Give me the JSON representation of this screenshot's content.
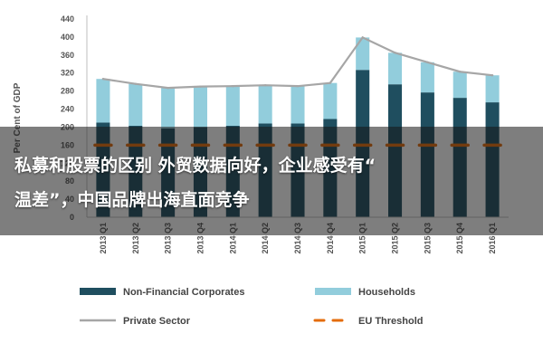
{
  "chart_data": {
    "type": "bar",
    "stacked": true,
    "ylabel": "Per Cent of GDP",
    "ylim": [
      0,
      440
    ],
    "yticks": [
      0,
      40,
      80,
      120,
      160,
      200,
      240,
      280,
      320,
      360,
      400,
      440
    ],
    "grid": false,
    "legend_position": "bottom",
    "categories": [
      "2013 Q1",
      "2013 Q2",
      "2013 Q3",
      "2013 Q4",
      "2014 Q1",
      "2014 Q2",
      "2014 Q3",
      "2014 Q4",
      "2015 Q1",
      "2015 Q2",
      "2015 Q3",
      "2015 Q4",
      "2016 Q1"
    ],
    "series": [
      {
        "name": "Non-Financial Corporates",
        "kind": "bar",
        "color": "#1f4e5f",
        "values": [
          210,
          203,
          197,
          200,
          203,
          208,
          208,
          218,
          327,
          295,
          277,
          265,
          255
        ]
      },
      {
        "name": "Households",
        "kind": "bar",
        "color": "#92cddc",
        "values": [
          97,
          93,
          90,
          90,
          88,
          85,
          83,
          80,
          72,
          70,
          67,
          58,
          60
        ]
      },
      {
        "name": "Private Sector",
        "kind": "line",
        "color": "#a6a6a6",
        "values": [
          307,
          296,
          287,
          290,
          291,
          293,
          291,
          298,
          399,
          365,
          344,
          323,
          315
        ]
      },
      {
        "name": "EU Threshold",
        "kind": "dashed-line",
        "color": "#e46c0a",
        "values": [
          160,
          160,
          160,
          160,
          160,
          160,
          160,
          160,
          160,
          160,
          160,
          160,
          160
        ]
      }
    ]
  },
  "caption": {
    "line1": "私募和股票的区别 外贸数据向好，企业感受有“",
    "line2": "温差”，中国品牌出海直面竞争"
  }
}
